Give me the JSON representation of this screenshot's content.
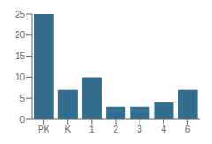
{
  "chart_data": {
    "type": "bar",
    "categories": [
      "PK",
      "K",
      "1",
      "2",
      "3",
      "4",
      "6"
    ],
    "values": [
      25,
      7,
      10,
      3,
      3,
      4,
      7
    ],
    "color": "#336e8e",
    "ylim": [
      0,
      25
    ],
    "yticks": [
      0,
      5,
      10,
      15,
      20,
      25
    ],
    "grid": false
  }
}
